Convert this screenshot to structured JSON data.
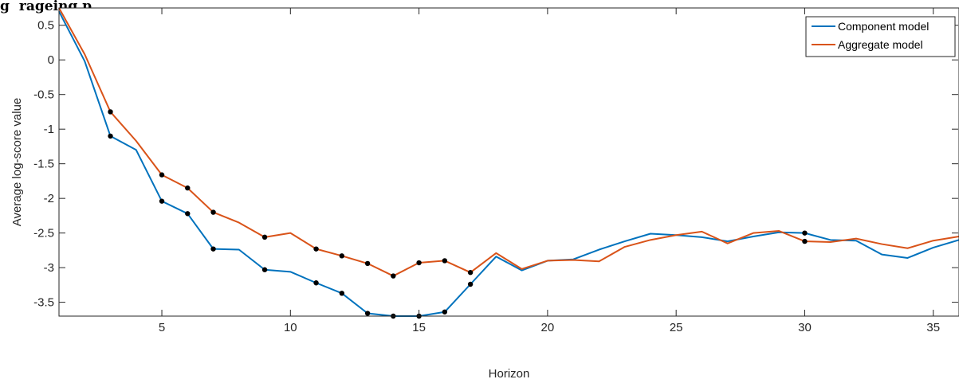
{
  "chart_data": {
    "type": "line",
    "title": "",
    "title_prefix": "g",
    "title_rest": "rageing p",
    "xlabel": "Horizon",
    "ylabel": "Average log-score value",
    "xlim": [
      1,
      36
    ],
    "ylim": [
      -3.7,
      0.75
    ],
    "xticks": [
      5,
      10,
      15,
      20,
      25,
      30,
      35
    ],
    "yticks": [
      0.5,
      0,
      -0.5,
      -1,
      -1.5,
      -2,
      -2.5,
      -3,
      -3.5
    ],
    "ytick_labels": [
      "0.5",
      "0",
      "-0.5",
      "-1",
      "-1.5",
      "-2",
      "-2.5",
      "-3",
      "-3.5"
    ],
    "grid": false,
    "legend_position": "top-right",
    "x": [
      1,
      2,
      3,
      4,
      5,
      6,
      7,
      8,
      9,
      10,
      11,
      12,
      13,
      14,
      15,
      16,
      17,
      18,
      19,
      20,
      21,
      22,
      23,
      24,
      25,
      26,
      27,
      28,
      29,
      30,
      31,
      32,
      33,
      34,
      35,
      36
    ],
    "series": [
      {
        "name": "Component model",
        "color": "#0072BD",
        "values": [
          0.7,
          -0.02,
          -1.1,
          -1.3,
          -2.04,
          -2.22,
          -2.73,
          -2.74,
          -3.03,
          -3.06,
          -3.22,
          -3.37,
          -3.66,
          -3.7,
          -3.7,
          -3.64,
          -3.24,
          -2.84,
          -3.04,
          -2.9,
          -2.88,
          -2.74,
          -2.62,
          -2.51,
          -2.53,
          -2.56,
          -2.62,
          -2.55,
          -2.49,
          -2.5,
          -2.6,
          -2.61,
          -2.81,
          -2.86,
          -2.71,
          -2.6
        ],
        "highlighted_x": [
          3,
          5,
          6,
          7,
          9,
          11,
          12,
          13,
          14,
          15,
          16,
          17,
          30
        ]
      },
      {
        "name": "Aggregate model",
        "color": "#D95319",
        "values": [
          0.75,
          0.08,
          -0.75,
          -1.17,
          -1.66,
          -1.85,
          -2.2,
          -2.35,
          -2.56,
          -2.5,
          -2.73,
          -2.83,
          -2.94,
          -3.12,
          -2.93,
          -2.9,
          -3.07,
          -2.79,
          -3.02,
          -2.9,
          -2.89,
          -2.91,
          -2.7,
          -2.6,
          -2.53,
          -2.48,
          -2.65,
          -2.5,
          -2.47,
          -2.62,
          -2.63,
          -2.58,
          -2.66,
          -2.72,
          -2.61,
          -2.55
        ],
        "highlighted_x": [
          3,
          5,
          6,
          7,
          9,
          11,
          12,
          13,
          14,
          15,
          16,
          17,
          30
        ]
      }
    ]
  }
}
